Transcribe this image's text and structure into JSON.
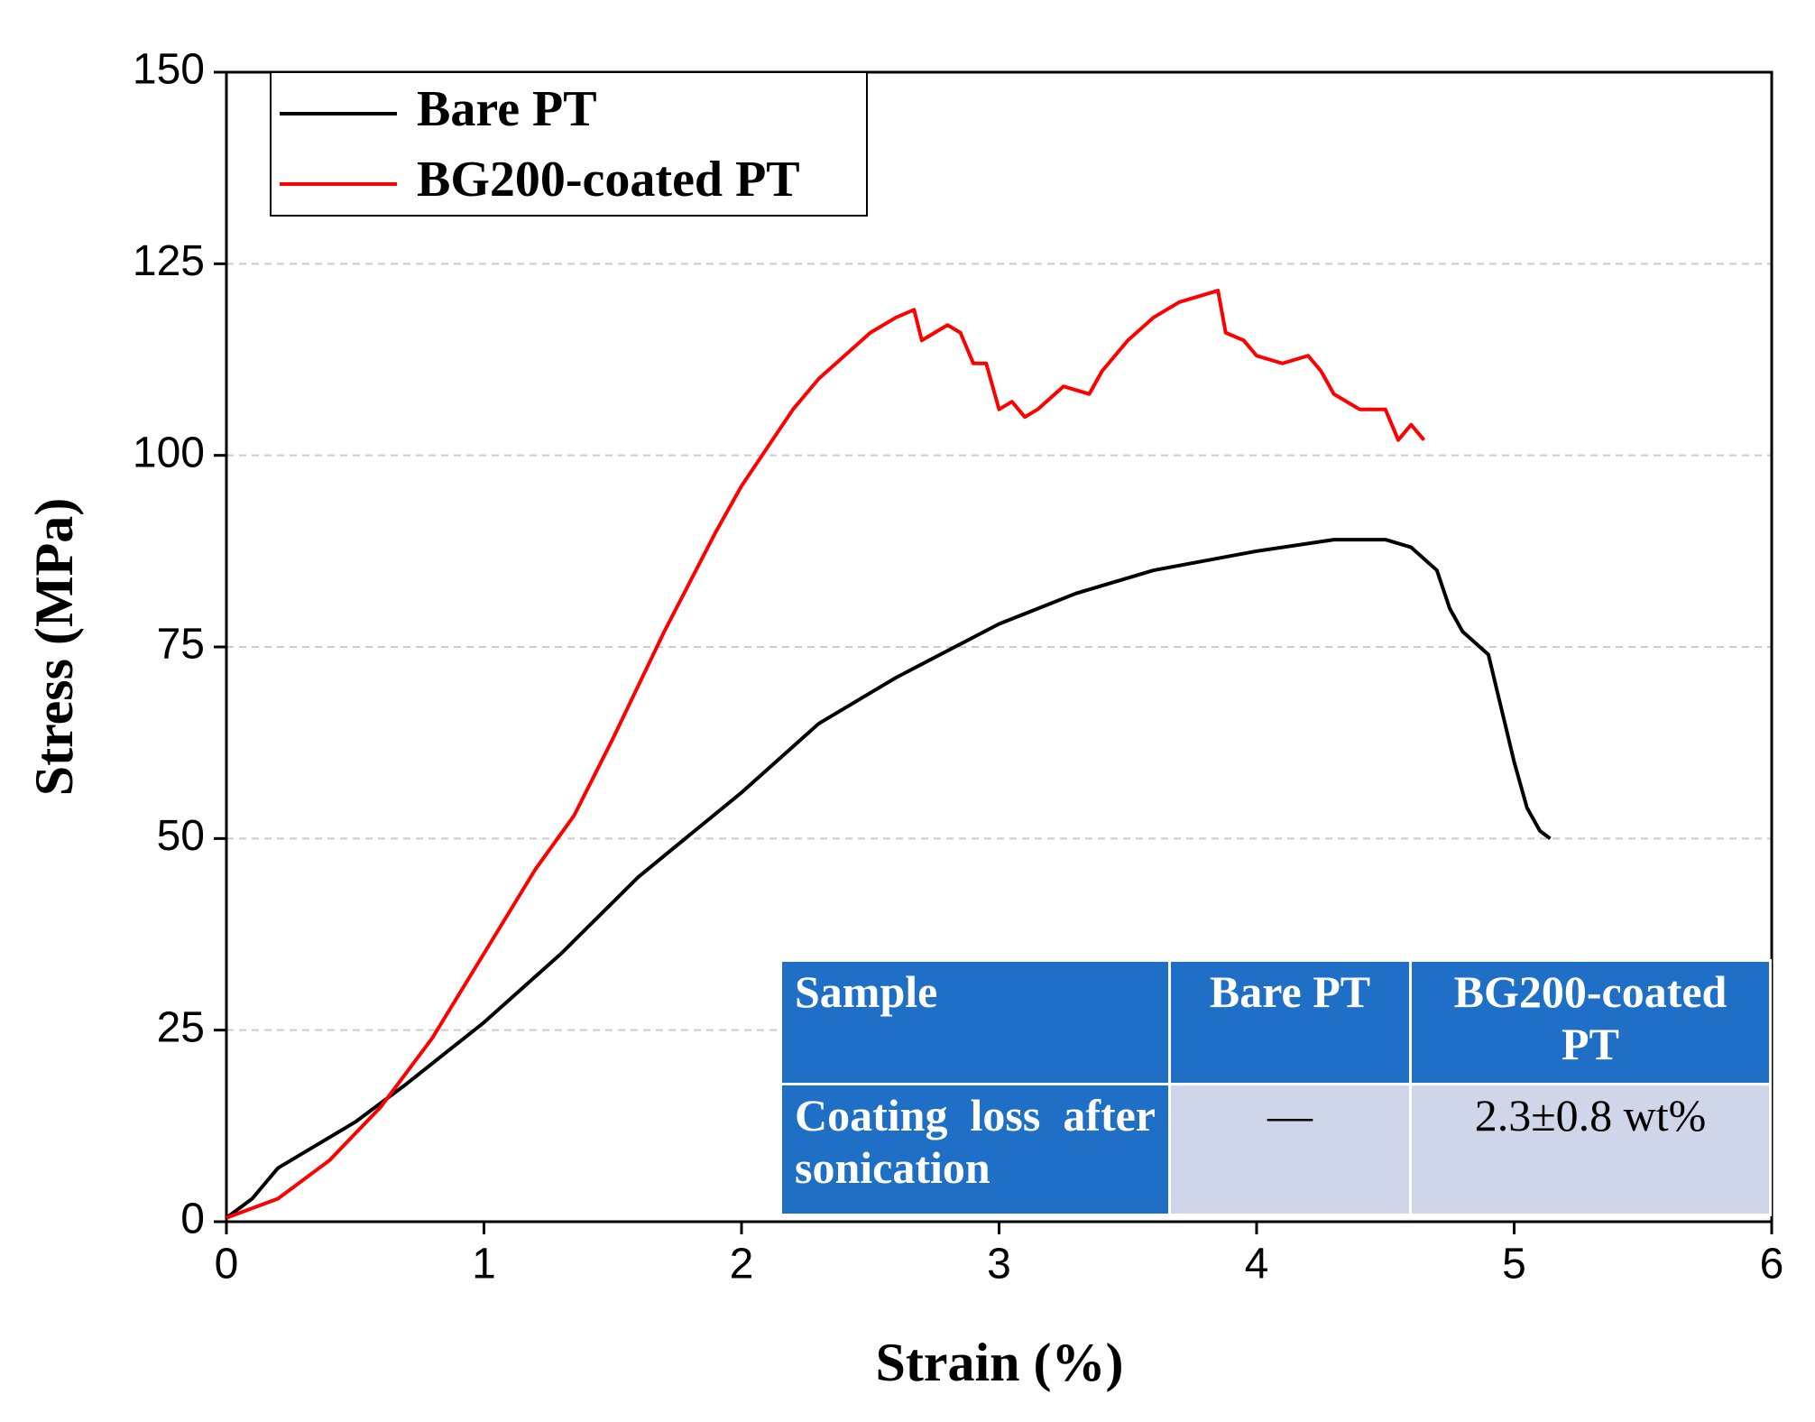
{
  "chart_data": {
    "type": "line",
    "x_label": "Strain (%)",
    "y_label": "Stress (MPa)",
    "xlim": [
      0,
      6
    ],
    "xticks": [
      0,
      1,
      2,
      3,
      4,
      5,
      6
    ],
    "ylim": [
      0,
      150
    ],
    "yticks": [
      0,
      25,
      50,
      75,
      100,
      125,
      150
    ],
    "grid": true,
    "legend": "upper left",
    "series": [
      {
        "name": "Bare PT",
        "color": "#000000",
        "x": [
          0,
          0.1,
          0.2,
          0.3,
          0.5,
          0.7,
          1.0,
          1.3,
          1.6,
          2.0,
          2.3,
          2.6,
          3.0,
          3.3,
          3.6,
          4.0,
          4.3,
          4.5,
          4.6,
          4.7,
          4.75,
          4.8,
          4.9,
          4.95,
          5.0,
          5.05,
          5.1,
          5.14
        ],
        "values": [
          0.5,
          3,
          7,
          9,
          13,
          18,
          26,
          35,
          45,
          56,
          65,
          71,
          78,
          82,
          85,
          87.5,
          89,
          89,
          88,
          85,
          80,
          77,
          74,
          67,
          60,
          54,
          51,
          50
        ]
      },
      {
        "name": "BG200-coated PT",
        "color": "#ff0000",
        "x": [
          0,
          0.2,
          0.4,
          0.6,
          0.8,
          1.0,
          1.2,
          1.35,
          1.5,
          1.7,
          1.9,
          2.0,
          2.1,
          2.2,
          2.3,
          2.4,
          2.5,
          2.6,
          2.67,
          2.7,
          2.8,
          2.85,
          2.9,
          2.95,
          3.0,
          3.05,
          3.1,
          3.15,
          3.25,
          3.35,
          3.4,
          3.5,
          3.6,
          3.7,
          3.8,
          3.85,
          3.88,
          3.95,
          4.0,
          4.1,
          4.2,
          4.25,
          4.3,
          4.4,
          4.5,
          4.55,
          4.6,
          4.65
        ],
        "values": [
          0.5,
          3,
          8,
          15,
          24,
          35,
          46,
          53,
          63,
          77,
          90,
          96,
          101,
          106,
          110,
          113,
          116,
          118,
          119,
          115,
          117,
          116,
          112,
          112,
          106,
          107,
          105,
          106,
          109,
          108,
          111,
          115,
          118,
          120,
          121,
          121.5,
          116,
          115,
          113,
          112,
          113,
          111,
          108,
          106,
          106,
          102,
          104,
          102
        ]
      }
    ],
    "table": {
      "header": [
        "Sample",
        "Bare PT",
        "BG200-coated PT"
      ],
      "rows": [
        [
          "Coating loss after sonication",
          "—",
          "2.3±0.8 wt%"
        ]
      ]
    }
  }
}
